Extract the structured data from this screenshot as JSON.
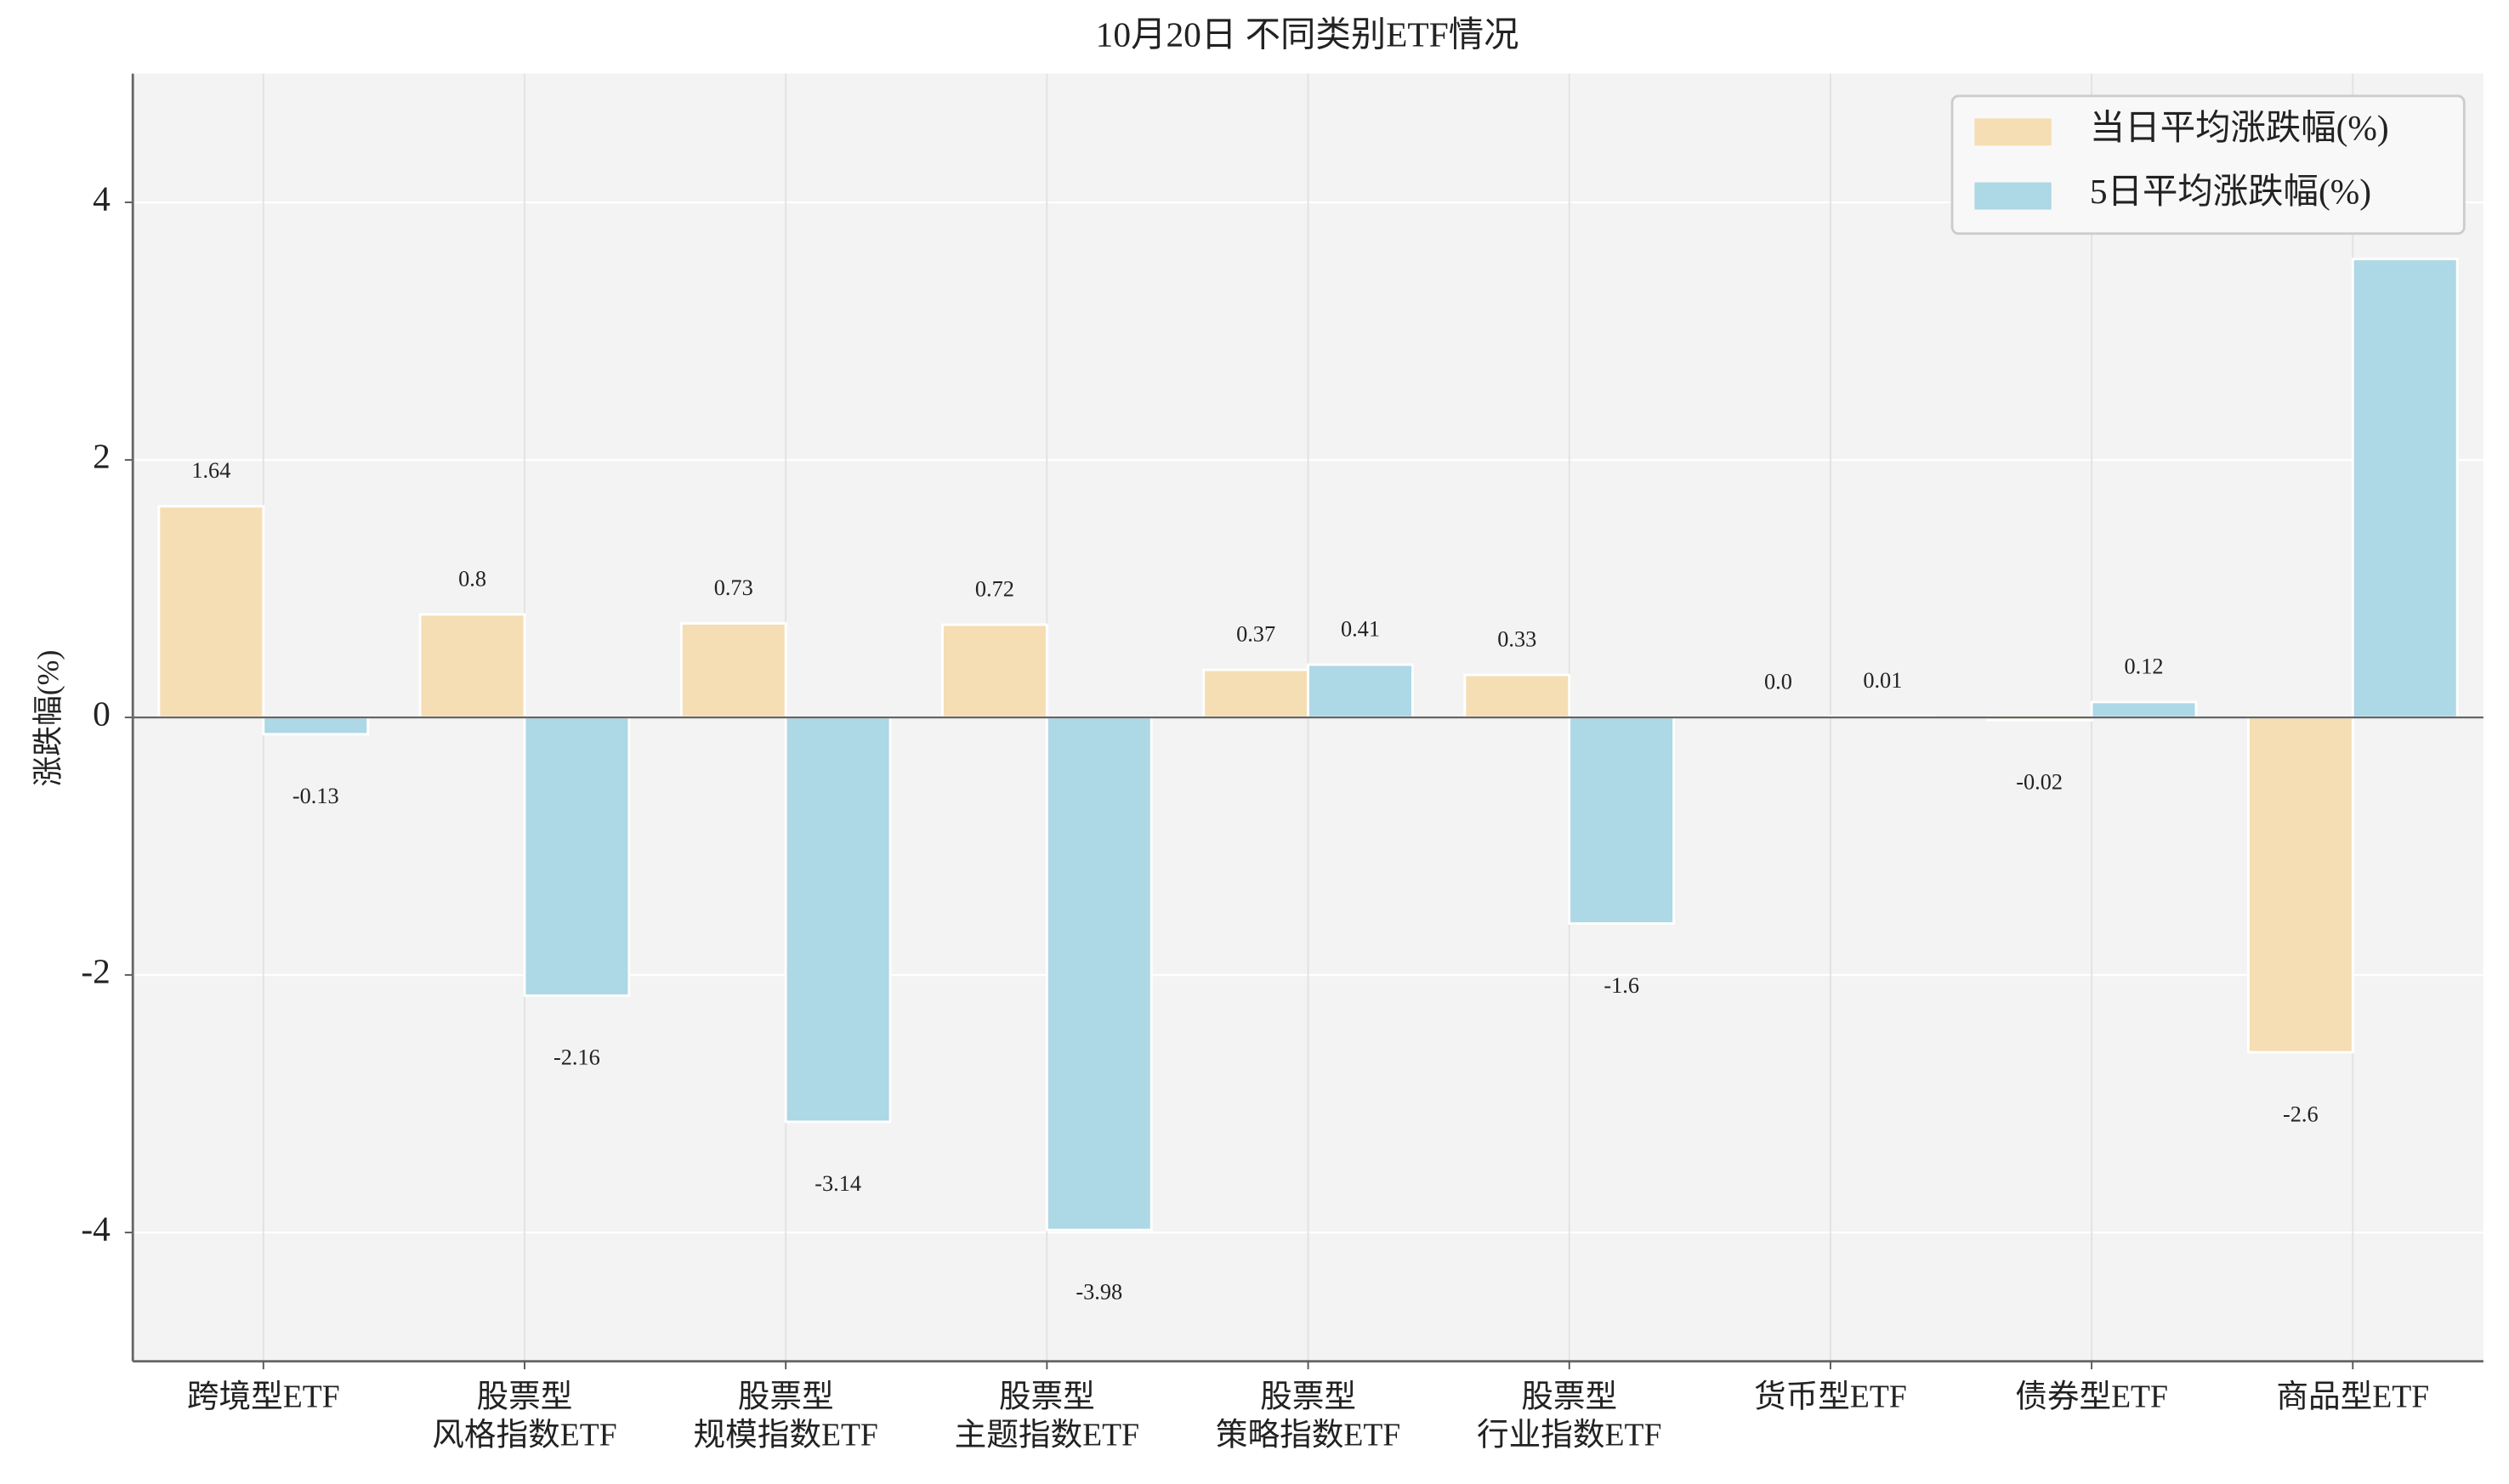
{
  "chart_data": {
    "type": "bar",
    "title": "10月20日 不同类别ETF情况",
    "y_label": "涨跌幅(%)",
    "categories": [
      [
        "跨境型ETF"
      ],
      [
        "股票型",
        "风格指数ETF"
      ],
      [
        "股票型",
        "规模指数ETF"
      ],
      [
        "股票型",
        "主题指数ETF"
      ],
      [
        "股票型",
        "策略指数ETF"
      ],
      [
        "股票型",
        "行业指数ETF"
      ],
      [
        "货币型ETF"
      ],
      [
        "债券型ETF"
      ],
      [
        "商品型ETF"
      ]
    ],
    "series": [
      {
        "name": "当日平均涨跌幅(%)",
        "color": "#f5deb3",
        "values": [
          1.64,
          0.8,
          0.73,
          0.72,
          0.37,
          0.33,
          0.0,
          -0.02,
          -2.6
        ],
        "value_labels": [
          "1.64",
          "0.8",
          "0.73",
          "0.72",
          "0.37",
          "0.33",
          "0.0",
          "-0.02",
          "-2.6"
        ]
      },
      {
        "name": "5日平均涨跌幅(%)",
        "color": "#add8e6",
        "values": [
          -0.13,
          -2.16,
          -3.14,
          -3.98,
          0.41,
          -1.6,
          0.01,
          0.12,
          3.56
        ]
      }
    ],
    "ylim": [
      -5,
      5
    ],
    "yticks": [
      -4,
      -2,
      0,
      2,
      4
    ],
    "grid": true,
    "legend_position": "upper-right"
  }
}
